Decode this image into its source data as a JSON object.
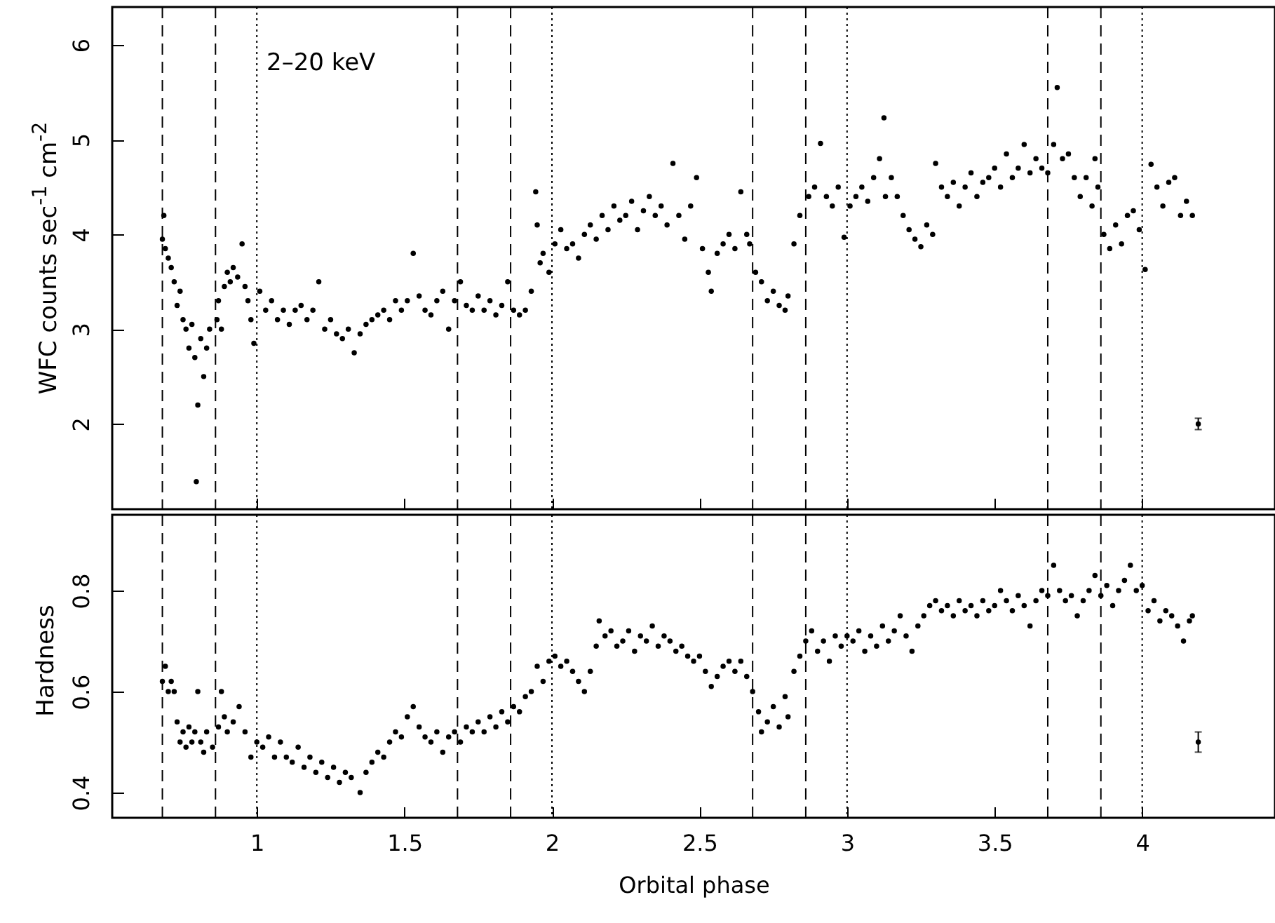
{
  "chart_data": [
    {
      "type": "scatter",
      "ylabel": "WFC counts sec$^{-1}$ cm$^{-2}$",
      "annotations": [
        "2–20 keV"
      ],
      "xlim": [
        0.51,
        4.45
      ],
      "xticks": [
        1,
        1.5,
        2,
        2.5,
        3,
        3.5,
        4
      ],
      "ylim": [
        1.1,
        6.4
      ],
      "yticks": [
        2,
        3,
        4,
        5,
        6
      ],
      "tick_labels": "y",
      "marker": "circle",
      "ref_lines": [
        {
          "axis": "x",
          "value": 0.68,
          "line_style": "dashed"
        },
        {
          "axis": "x",
          "value": 0.86,
          "line_style": "dashed"
        },
        {
          "axis": "x",
          "value": 1,
          "line_style": "dotted"
        },
        {
          "axis": "x",
          "value": 1.68,
          "line_style": "dashed"
        },
        {
          "axis": "x",
          "value": 1.86,
          "line_style": "dashed"
        },
        {
          "axis": "x",
          "value": 2,
          "line_style": "dotted"
        },
        {
          "axis": "x",
          "value": 2.68,
          "line_style": "dashed"
        },
        {
          "axis": "x",
          "value": 2.86,
          "line_style": "dashed"
        },
        {
          "axis": "x",
          "value": 3,
          "line_style": "dotted"
        },
        {
          "axis": "x",
          "value": 3.68,
          "line_style": "dashed"
        },
        {
          "axis": "x",
          "value": 3.86,
          "line_style": "dashed"
        },
        {
          "axis": "x",
          "value": 4,
          "line_style": "dotted"
        }
      ],
      "series": [
        {
          "color": "#000000",
          "x": [
            0.68,
            0.685,
            0.69,
            0.7,
            0.71,
            0.72,
            0.73,
            0.74,
            0.75,
            0.76,
            0.77,
            0.78,
            0.79,
            0.795,
            0.8,
            0.81,
            0.82,
            0.83,
            0.84,
            0.865,
            0.87,
            0.88,
            0.89,
            0.9,
            0.91,
            0.92,
            0.935,
            0.95,
            0.96,
            0.97,
            0.98,
            0.99,
            1.01,
            1.03,
            1.05,
            1.07,
            1.09,
            1.11,
            1.13,
            1.15,
            1.17,
            1.19,
            1.21,
            1.23,
            1.25,
            1.27,
            1.29,
            1.31,
            1.33,
            1.35,
            1.37,
            1.39,
            1.41,
            1.43,
            1.45,
            1.47,
            1.49,
            1.51,
            1.53,
            1.55,
            1.57,
            1.59,
            1.61,
            1.63,
            1.65,
            1.67,
            1.69,
            1.71,
            1.73,
            1.75,
            1.77,
            1.79,
            1.81,
            1.83,
            1.85,
            1.87,
            1.89,
            1.91,
            1.93,
            1.945,
            1.95,
            1.96,
            1.97,
            1.99,
            2.01,
            2.03,
            2.05,
            2.07,
            2.09,
            2.11,
            2.13,
            2.15,
            2.17,
            2.19,
            2.21,
            2.23,
            2.25,
            2.27,
            2.29,
            2.31,
            2.33,
            2.35,
            2.37,
            2.39,
            2.41,
            2.43,
            2.45,
            2.47,
            2.49,
            2.51,
            2.53,
            2.54,
            2.56,
            2.58,
            2.6,
            2.62,
            2.64,
            2.66,
            2.67,
            2.69,
            2.71,
            2.73,
            2.75,
            2.77,
            2.79,
            2.8,
            2.82,
            2.84,
            2.87,
            2.89,
            2.91,
            2.93,
            2.95,
            2.97,
            2.99,
            3.01,
            3.03,
            3.05,
            3.07,
            3.09,
            3.11,
            3.125,
            3.13,
            3.15,
            3.17,
            3.19,
            3.21,
            3.23,
            3.25,
            3.27,
            3.29,
            3.3,
            3.32,
            3.34,
            3.36,
            3.38,
            3.4,
            3.42,
            3.44,
            3.46,
            3.48,
            3.5,
            3.52,
            3.54,
            3.56,
            3.58,
            3.6,
            3.62,
            3.64,
            3.66,
            3.68,
            3.7,
            3.712,
            3.73,
            3.75,
            3.77,
            3.79,
            3.81,
            3.83,
            3.84,
            3.85,
            3.87,
            3.89,
            3.91,
            3.93,
            3.95,
            3.97,
            3.99,
            4.01,
            4.03,
            4.05,
            4.07,
            4.09,
            4.11,
            4.13,
            4.15,
            4.17
          ],
          "values": [
            3.95,
            4.2,
            3.85,
            3.75,
            3.65,
            3.5,
            3.25,
            3.4,
            3.1,
            3.0,
            2.8,
            3.05,
            2.7,
            1.39,
            2.2,
            2.9,
            2.5,
            2.8,
            3.0,
            3.1,
            3.3,
            3.0,
            3.45,
            3.6,
            3.5,
            3.65,
            3.55,
            3.9,
            3.45,
            3.3,
            3.1,
            2.85,
            3.4,
            3.2,
            3.3,
            3.1,
            3.2,
            3.05,
            3.2,
            3.25,
            3.1,
            3.2,
            3.5,
            3.0,
            3.1,
            2.95,
            2.9,
            3.0,
            2.75,
            2.95,
            3.05,
            3.1,
            3.15,
            3.2,
            3.1,
            3.3,
            3.2,
            3.3,
            3.8,
            3.35,
            3.2,
            3.15,
            3.3,
            3.4,
            3.0,
            3.3,
            3.5,
            3.25,
            3.2,
            3.35,
            3.2,
            3.3,
            3.15,
            3.25,
            3.5,
            3.2,
            3.15,
            3.2,
            3.4,
            4.45,
            4.1,
            3.7,
            3.8,
            3.6,
            3.9,
            4.05,
            3.85,
            3.9,
            3.75,
            4.0,
            4.1,
            3.95,
            4.2,
            4.05,
            4.3,
            4.15,
            4.2,
            4.35,
            4.05,
            4.25,
            4.4,
            4.2,
            4.3,
            4.1,
            4.75,
            4.2,
            3.95,
            4.3,
            4.6,
            3.85,
            3.6,
            3.4,
            3.8,
            3.9,
            4.0,
            3.85,
            4.45,
            4.0,
            3.9,
            3.6,
            3.5,
            3.3,
            3.4,
            3.25,
            3.2,
            3.35,
            3.9,
            4.2,
            4.4,
            4.5,
            4.96,
            4.4,
            4.3,
            4.5,
            3.97,
            4.3,
            4.4,
            4.5,
            4.35,
            4.6,
            4.8,
            5.23,
            4.4,
            4.6,
            4.4,
            4.2,
            4.05,
            3.95,
            3.87,
            4.1,
            4.0,
            4.75,
            4.5,
            4.4,
            4.55,
            4.3,
            4.5,
            4.65,
            4.4,
            4.55,
            4.6,
            4.7,
            4.5,
            4.85,
            4.6,
            4.7,
            4.95,
            4.65,
            4.8,
            4.7,
            4.65,
            4.95,
            5.55,
            4.8,
            4.85,
            4.6,
            4.4,
            4.6,
            4.3,
            4.8,
            4.5,
            4.0,
            3.85,
            4.1,
            3.9,
            4.2,
            4.25,
            4.05,
            3.63,
            4.74,
            4.5,
            4.3,
            4.55,
            4.6,
            4.2,
            4.35,
            4.2
          ]
        },
        {
          "x": [
            4.19
          ],
          "values": [
            2.0
          ],
          "errors": [
            0.06
          ],
          "color": "#000000"
        }
      ]
    },
    {
      "type": "scatter",
      "xlabel": "Orbital phase",
      "ylabel": "Hardness",
      "xlim": [
        0.51,
        4.45
      ],
      "xticks": [
        1,
        1.5,
        2,
        2.5,
        3,
        3.5,
        4
      ],
      "ylim": [
        0.35,
        0.95
      ],
      "yticks": [
        0.4,
        0.6,
        0.8
      ],
      "marker": "circle",
      "ref_lines": [
        {
          "axis": "x",
          "value": 0.68,
          "line_style": "dashed"
        },
        {
          "axis": "x",
          "value": 0.86,
          "line_style": "dashed"
        },
        {
          "axis": "x",
          "value": 1,
          "line_style": "dotted"
        },
        {
          "axis": "x",
          "value": 1.68,
          "line_style": "dashed"
        },
        {
          "axis": "x",
          "value": 1.86,
          "line_style": "dashed"
        },
        {
          "axis": "x",
          "value": 2,
          "line_style": "dotted"
        },
        {
          "axis": "x",
          "value": 2.68,
          "line_style": "dashed"
        },
        {
          "axis": "x",
          "value": 2.86,
          "line_style": "dashed"
        },
        {
          "axis": "x",
          "value": 3,
          "line_style": "dotted"
        },
        {
          "axis": "x",
          "value": 3.68,
          "line_style": "dashed"
        },
        {
          "axis": "x",
          "value": 3.86,
          "line_style": "dashed"
        },
        {
          "axis": "x",
          "value": 4,
          "line_style": "dotted"
        }
      ],
      "series": [
        {
          "color": "#000000",
          "x": [
            0.68,
            0.69,
            0.7,
            0.71,
            0.72,
            0.73,
            0.74,
            0.75,
            0.76,
            0.77,
            0.78,
            0.79,
            0.8,
            0.81,
            0.82,
            0.83,
            0.85,
            0.87,
            0.88,
            0.89,
            0.9,
            0.92,
            0.94,
            0.96,
            0.98,
            1.0,
            1.02,
            1.04,
            1.06,
            1.08,
            1.1,
            1.12,
            1.14,
            1.16,
            1.18,
            1.2,
            1.22,
            1.24,
            1.26,
            1.28,
            1.3,
            1.32,
            1.35,
            1.37,
            1.39,
            1.41,
            1.43,
            1.45,
            1.47,
            1.49,
            1.51,
            1.53,
            1.55,
            1.57,
            1.59,
            1.61,
            1.63,
            1.65,
            1.67,
            1.69,
            1.71,
            1.73,
            1.75,
            1.77,
            1.79,
            1.81,
            1.83,
            1.85,
            1.87,
            1.89,
            1.91,
            1.93,
            1.95,
            1.97,
            1.99,
            2.01,
            2.03,
            2.05,
            2.07,
            2.09,
            2.11,
            2.13,
            2.15,
            2.16,
            2.18,
            2.2,
            2.22,
            2.24,
            2.26,
            2.28,
            2.3,
            2.32,
            2.34,
            2.36,
            2.38,
            2.4,
            2.42,
            2.44,
            2.46,
            2.48,
            2.5,
            2.52,
            2.54,
            2.56,
            2.58,
            2.6,
            2.62,
            2.64,
            2.66,
            2.68,
            2.7,
            2.71,
            2.73,
            2.75,
            2.77,
            2.79,
            2.8,
            2.82,
            2.84,
            2.86,
            2.88,
            2.9,
            2.92,
            2.94,
            2.96,
            2.98,
            3.0,
            3.02,
            3.04,
            3.06,
            3.08,
            3.1,
            3.12,
            3.14,
            3.16,
            3.18,
            3.2,
            3.22,
            3.24,
            3.26,
            3.28,
            3.3,
            3.32,
            3.34,
            3.36,
            3.38,
            3.4,
            3.42,
            3.44,
            3.46,
            3.48,
            3.5,
            3.52,
            3.54,
            3.56,
            3.58,
            3.6,
            3.62,
            3.64,
            3.66,
            3.68,
            3.7,
            3.72,
            3.74,
            3.76,
            3.78,
            3.8,
            3.82,
            3.84,
            3.86,
            3.88,
            3.9,
            3.92,
            3.94,
            3.96,
            3.98,
            4.0,
            4.02,
            4.04,
            4.06,
            4.08,
            4.1,
            4.12,
            4.14,
            4.16,
            4.17
          ],
          "values": [
            0.62,
            0.65,
            0.6,
            0.62,
            0.6,
            0.54,
            0.5,
            0.52,
            0.49,
            0.53,
            0.5,
            0.52,
            0.6,
            0.5,
            0.48,
            0.52,
            0.49,
            0.53,
            0.6,
            0.55,
            0.52,
            0.54,
            0.57,
            0.52,
            0.47,
            0.5,
            0.49,
            0.51,
            0.47,
            0.5,
            0.47,
            0.46,
            0.49,
            0.45,
            0.47,
            0.44,
            0.46,
            0.43,
            0.45,
            0.42,
            0.44,
            0.43,
            0.4,
            0.44,
            0.46,
            0.48,
            0.47,
            0.5,
            0.52,
            0.51,
            0.55,
            0.57,
            0.53,
            0.51,
            0.5,
            0.52,
            0.48,
            0.51,
            0.52,
            0.5,
            0.53,
            0.52,
            0.54,
            0.52,
            0.55,
            0.53,
            0.56,
            0.54,
            0.57,
            0.56,
            0.59,
            0.6,
            0.65,
            0.62,
            0.66,
            0.67,
            0.65,
            0.66,
            0.64,
            0.62,
            0.6,
            0.64,
            0.69,
            0.74,
            0.71,
            0.72,
            0.69,
            0.7,
            0.72,
            0.68,
            0.71,
            0.7,
            0.73,
            0.69,
            0.71,
            0.7,
            0.68,
            0.69,
            0.67,
            0.66,
            0.67,
            0.64,
            0.61,
            0.63,
            0.65,
            0.66,
            0.64,
            0.66,
            0.63,
            0.6,
            0.56,
            0.52,
            0.54,
            0.57,
            0.53,
            0.59,
            0.55,
            0.64,
            0.67,
            0.7,
            0.72,
            0.68,
            0.7,
            0.66,
            0.71,
            0.69,
            0.71,
            0.7,
            0.72,
            0.68,
            0.71,
            0.69,
            0.73,
            0.7,
            0.72,
            0.75,
            0.71,
            0.68,
            0.73,
            0.75,
            0.77,
            0.78,
            0.76,
            0.77,
            0.75,
            0.78,
            0.76,
            0.77,
            0.75,
            0.78,
            0.76,
            0.77,
            0.8,
            0.78,
            0.76,
            0.79,
            0.77,
            0.73,
            0.78,
            0.8,
            0.79,
            0.85,
            0.8,
            0.78,
            0.79,
            0.75,
            0.78,
            0.8,
            0.83,
            0.79,
            0.81,
            0.77,
            0.8,
            0.82,
            0.85,
            0.8,
            0.81,
            0.76,
            0.78,
            0.74,
            0.76,
            0.75,
            0.73,
            0.7,
            0.74,
            0.75
          ]
        },
        {
          "x": [
            4.19
          ],
          "values": [
            0.5
          ],
          "errors": [
            0.02
          ],
          "color": "#000000"
        }
      ]
    }
  ]
}
